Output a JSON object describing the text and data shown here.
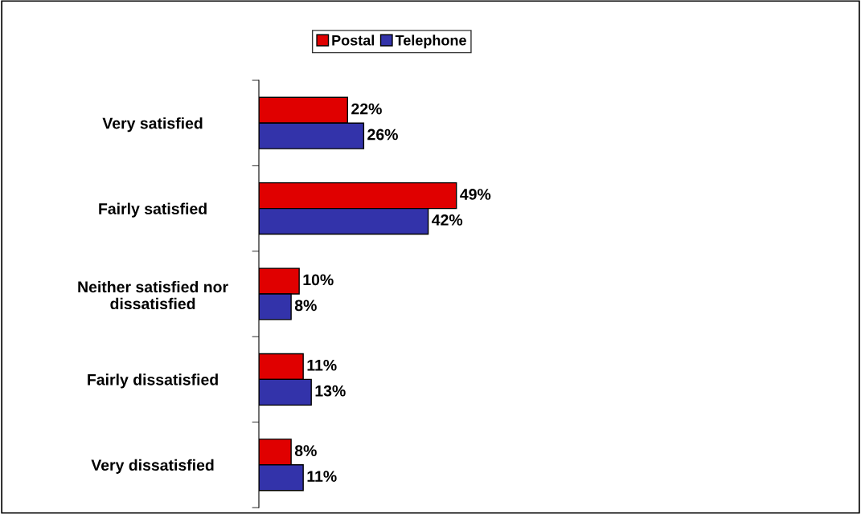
{
  "chart_data": {
    "type": "bar",
    "orientation": "horizontal",
    "categories": [
      "Very satisfied",
      "Fairly satisfied",
      "Neither satisfied nor\ndissatisfied",
      "Fairly dissatisfied",
      "Very dissatisfied"
    ],
    "series": [
      {
        "name": "Postal",
        "color": "#e00000",
        "values": [
          22,
          49,
          10,
          11,
          8
        ],
        "value_labels": [
          "22%",
          "49%",
          "10%",
          "11%",
          "8%"
        ]
      },
      {
        "name": "Telephone",
        "color": "#3333aa",
        "values": [
          26,
          42,
          8,
          13,
          11
        ],
        "value_labels": [
          "26%",
          "42%",
          "8%",
          "13%",
          "11%"
        ]
      }
    ],
    "legend": "top",
    "grid": false,
    "tick_labels": "y"
  }
}
